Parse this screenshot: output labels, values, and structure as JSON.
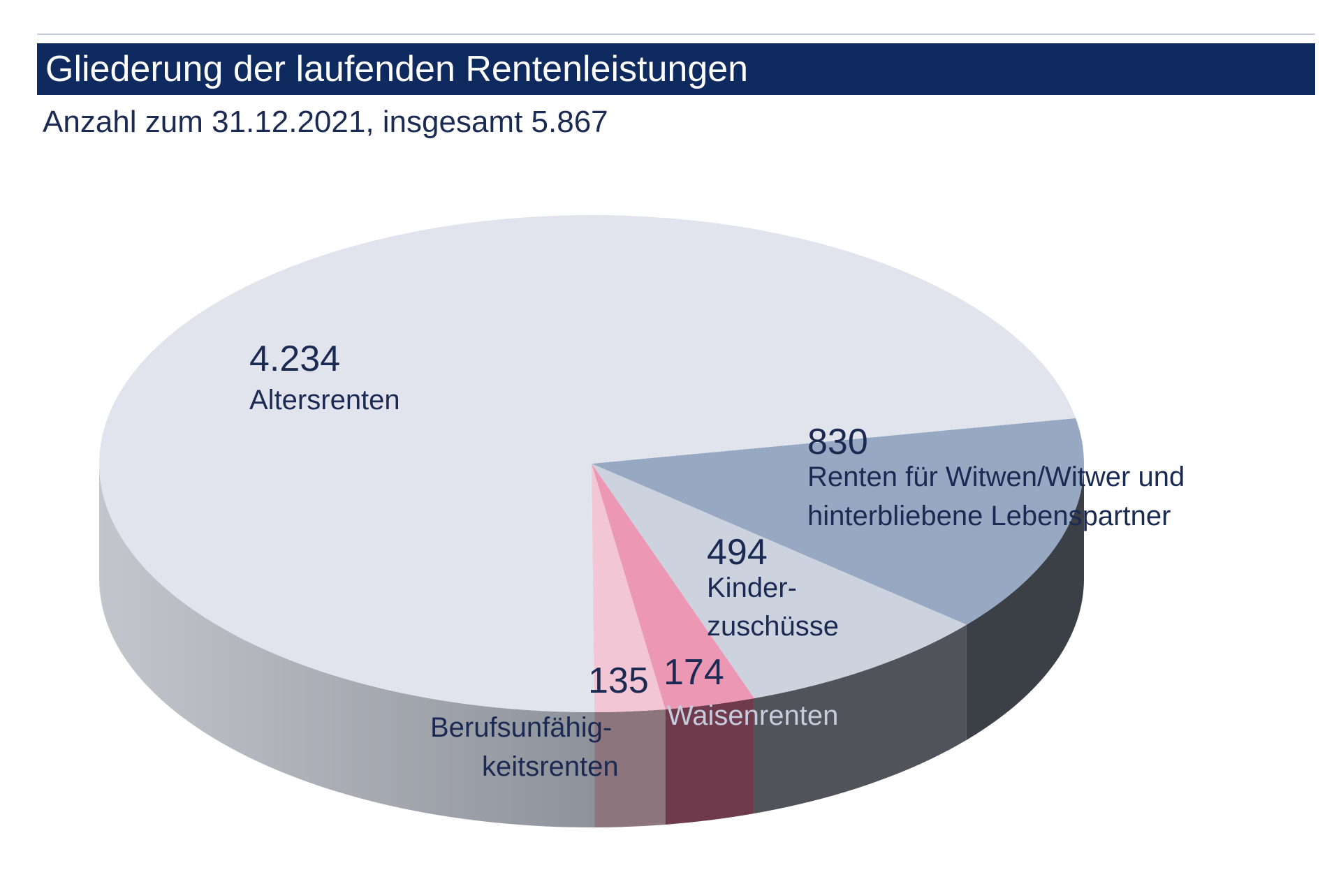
{
  "header": {
    "title": "Gliederung der laufenden Rentenleistungen",
    "subtitle": "Anzahl zum 31.12.2021, insgesamt 5.867"
  },
  "chart_data": {
    "type": "pie",
    "style": "3d",
    "total": 5867,
    "slices": [
      {
        "name": "Altersrenten",
        "value": 4234,
        "value_label": "4.234",
        "label_lines": [
          "Altersrenten"
        ],
        "color": "#e1e4ed"
      },
      {
        "name": "Renten für Witwen/Witwer und hinterbliebene Lebenspartner",
        "value": 830,
        "value_label": "830",
        "label_lines": [
          "Renten für Witwen/Witwer und",
          "hinterbliebene Lebenspartner"
        ],
        "color": "#97a9c2"
      },
      {
        "name": "Kinderzuschüsse",
        "value": 494,
        "value_label": "494",
        "label_lines": [
          "Kinder-",
          "zuschüsse"
        ],
        "color": "#ccd3de"
      },
      {
        "name": "Waisenrenten",
        "value": 174,
        "value_label": "174",
        "label_lines": [
          "Waisenrenten"
        ],
        "color": "#ec97b4"
      },
      {
        "name": "Berufsunfähigkeitsrenten",
        "value": 135,
        "value_label": "135",
        "label_lines": [
          "Berufsunfähig-",
          "keitsrenten"
        ],
        "color": "#f2c6d4"
      }
    ]
  }
}
